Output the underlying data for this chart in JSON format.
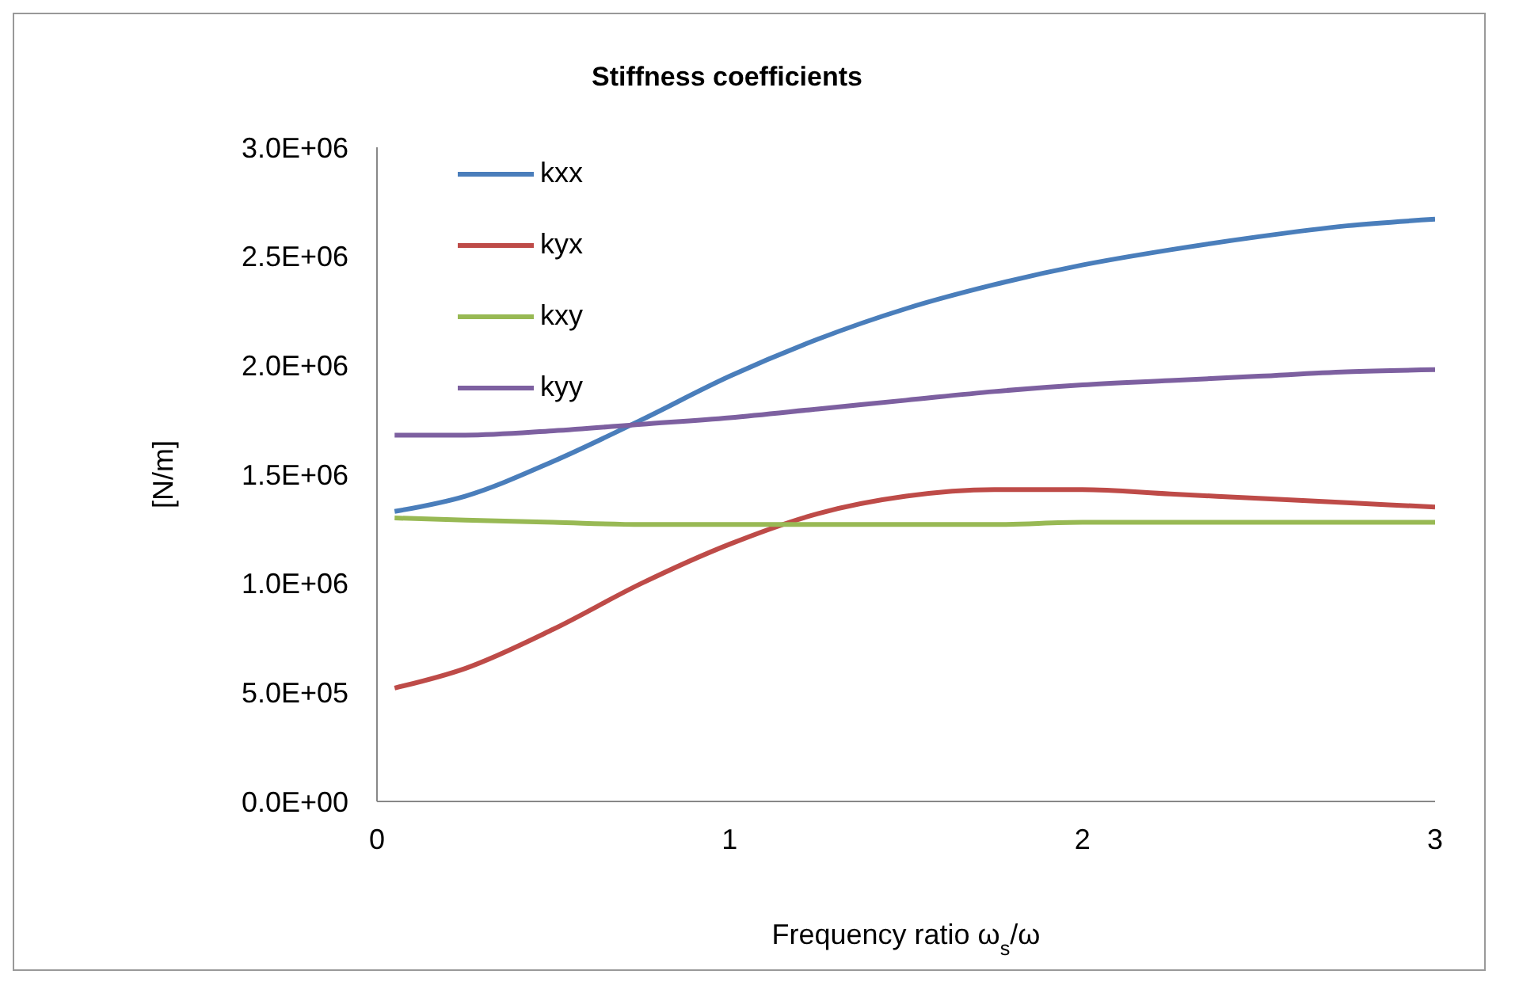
{
  "chart_data": {
    "type": "line",
    "title": "Stiffness coefficients",
    "xlabel": "Frequency ratio ω$_{s}$/ω",
    "ylabel": "[N/m]",
    "xlim": [
      0,
      3
    ],
    "xticks": [
      0,
      1,
      2,
      3
    ],
    "ylim": [
      0,
      3000000
    ],
    "yticks": [
      {
        "value": 0,
        "label": "0.0E+00"
      },
      {
        "value": 500000,
        "label": "5.0E+05"
      },
      {
        "value": 1000000,
        "label": "1.0E+06"
      },
      {
        "value": 1500000,
        "label": "1.5E+06"
      },
      {
        "value": 2000000,
        "label": "2.0E+06"
      },
      {
        "value": 2500000,
        "label": "2.5E+06"
      },
      {
        "value": 3000000,
        "label": "3.0E+06"
      }
    ],
    "grid": false,
    "legend": "top left",
    "marker": "none",
    "x": [
      0.05,
      0.25,
      0.5,
      0.75,
      1,
      1.25,
      1.5,
      1.75,
      2,
      2.25,
      2.5,
      2.75,
      3
    ],
    "series": [
      {
        "name": "kxx",
        "color": "#4a7ebb",
        "values": [
          1330000,
          1400000,
          1560000,
          1750000,
          1950000,
          2120000,
          2260000,
          2370000,
          2460000,
          2530000,
          2590000,
          2640000,
          2670000
        ]
      },
      {
        "name": "kyx",
        "color": "#be4b48",
        "values": [
          520000,
          610000,
          790000,
          1000000,
          1180000,
          1320000,
          1400000,
          1430000,
          1430000,
          1410000,
          1390000,
          1370000,
          1350000
        ]
      },
      {
        "name": "kxy",
        "color": "#98b954",
        "values": [
          1300000,
          1290000,
          1280000,
          1270000,
          1270000,
          1270000,
          1270000,
          1270000,
          1280000,
          1280000,
          1280000,
          1280000,
          1280000
        ]
      },
      {
        "name": "kyy",
        "color": "#7d60a0",
        "values": [
          1680000,
          1680000,
          1700000,
          1730000,
          1760000,
          1800000,
          1840000,
          1880000,
          1910000,
          1930000,
          1950000,
          1970000,
          1980000
        ]
      }
    ]
  }
}
